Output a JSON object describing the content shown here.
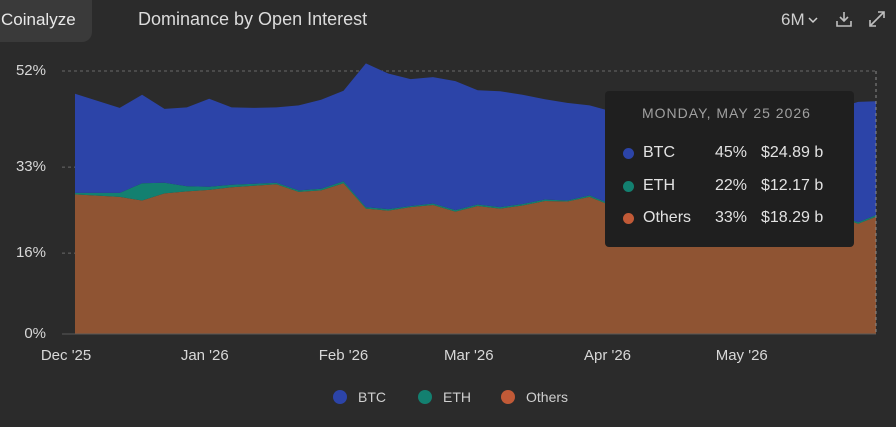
{
  "header": {
    "brand": "Coinalyze",
    "title": "Dominance by Open Interest",
    "range": "6M"
  },
  "colors": {
    "btc": "#2c44a8",
    "eth": "#138070",
    "others": "#8f5433",
    "others_legend": "#c15a37"
  },
  "tooltip": {
    "date": "MONDAY, MAY 25 2026",
    "rows": [
      {
        "name": "BTC",
        "pct": "45%",
        "value": "$24.89 b"
      },
      {
        "name": "ETH",
        "pct": "22%",
        "value": "$12.17 b"
      },
      {
        "name": "Others",
        "pct": "33%",
        "value": "$18.29 b"
      }
    ]
  },
  "legend": [
    "BTC",
    "ETH",
    "Others"
  ],
  "chart_data": {
    "type": "area",
    "title": "Dominance by Open Interest",
    "stacked": true,
    "y_ticks": [
      "52%",
      "33%",
      "16%",
      "0%"
    ],
    "x_ticks": [
      "Dec '25",
      "Jan '26",
      "Feb '26",
      "Mar '26",
      "Apr '26",
      "May '26"
    ],
    "x_tick_offsets": [
      -7,
      24,
      55,
      83,
      114,
      144
    ],
    "ylim": [
      0,
      52
    ],
    "x_range_days": [
      -5,
      174
    ],
    "x": [
      -5,
      5,
      10,
      15,
      20,
      25,
      30,
      35,
      40,
      45,
      50,
      55,
      60,
      65,
      70,
      75,
      80,
      85,
      90,
      95,
      100,
      105,
      110,
      115,
      120,
      125,
      130,
      135,
      140,
      145,
      150,
      155,
      160,
      165,
      170,
      174
    ],
    "series": [
      {
        "name": "Others",
        "values": [
          27.6,
          27.1,
          26.4,
          27.8,
          28.2,
          28.5,
          29.0,
          29.3,
          29.6,
          28.1,
          28.4,
          29.8,
          24.8,
          24.4,
          25.1,
          25.5,
          24.2,
          25.3,
          24.8,
          25.4,
          26.3,
          26.2,
          27.1,
          25.3,
          24.0,
          22.4,
          22.7,
          19.2,
          20.3,
          20.6,
          21.4,
          23.2,
          24.4,
          23.4,
          21.8,
          23.2
        ]
      },
      {
        "name": "ETH",
        "values": [
          0.3,
          0.8,
          3.4,
          2.1,
          1.0,
          0.6,
          0.5,
          0.4,
          0.3,
          0.3,
          0.3,
          0.4,
          0.3,
          0.3,
          0.2,
          0.3,
          0.3,
          0.3,
          0.3,
          0.3,
          0.3,
          0.2,
          0.3,
          0.3,
          0.3,
          0.3,
          0.3,
          0.3,
          0.3,
          0.3,
          0.3,
          0.3,
          0.3,
          0.3,
          0.3,
          0.3
        ]
      },
      {
        "name": "BTC",
        "values": [
          19.6,
          16.8,
          17.5,
          14.6,
          15.6,
          17.4,
          15.3,
          15.0,
          14.9,
          16.8,
          17.6,
          17.9,
          28.4,
          26.8,
          25.1,
          25.0,
          25.5,
          22.6,
          22.9,
          21.6,
          19.8,
          19.3,
          17.8,
          18.4,
          20.0,
          21.8,
          23.6,
          23.8,
          25.3,
          25.2,
          22.7,
          20.8,
          20.3,
          20.8,
          23.8,
          22.5
        ]
      }
    ]
  }
}
